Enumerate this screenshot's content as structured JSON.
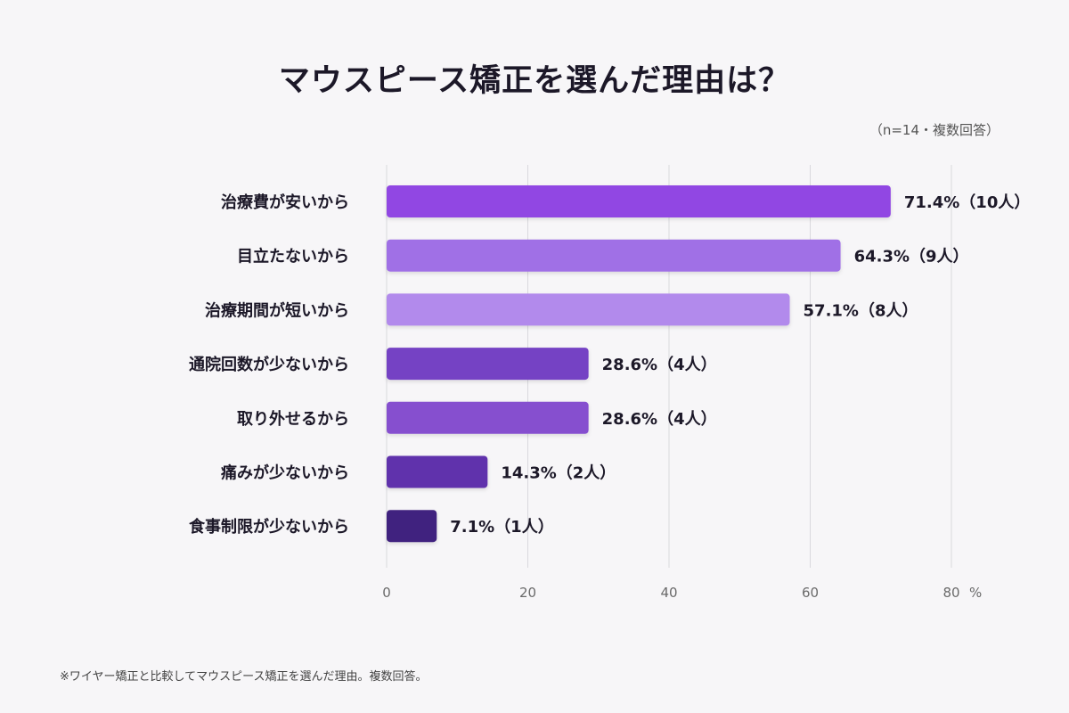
{
  "title": "マウスピース矯正を選んだ理由は？",
  "note": "（n=14・複数回答）",
  "footnote": "※ワイヤー矯正と比較してマウスピース矯正を選んだ理由。複数回答。",
  "chart_data": {
    "type": "bar",
    "orientation": "horizontal",
    "categories": [
      "治療費が安いから",
      "目立たないから",
      "治療期間が短いから",
      "通院回数が少ないから",
      "取り外せるから",
      "痛みが少ないから",
      "食事制限が少ないから"
    ],
    "values": [
      71.4,
      64.3,
      57.1,
      28.6,
      28.6,
      14.3,
      7.1
    ],
    "value_labels": [
      "71.4%（10人）",
      "64.3%（9人）",
      "57.1%（8人）",
      "28.6%（4人）",
      "28.6%（4人）",
      "14.3%（2人）",
      "7.1%（1人）"
    ],
    "colors": [
      "#9146e3",
      "#a070e6",
      "#b28aec",
      "#7442c4",
      "#8650cf",
      "#6133ac",
      "#41237f"
    ],
    "xlim": [
      0,
      80
    ],
    "xticks": [
      0,
      20,
      40,
      60,
      80
    ],
    "xunit": "%",
    "grid": true
  }
}
